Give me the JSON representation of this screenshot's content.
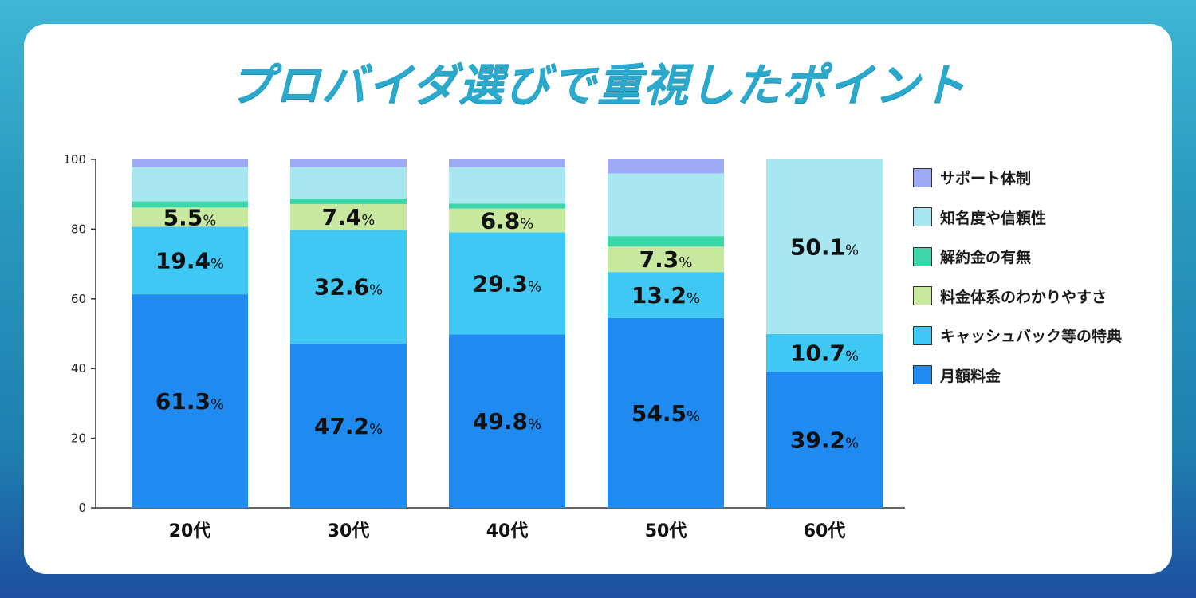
{
  "title": "プロバイダ選びで重視したポイント",
  "colors": {
    "monthly_fee": "#1f8af0",
    "cashback": "#40c8f5",
    "pricing_clarity": "#c8e8a0",
    "cancellation_fee": "#3dd6a8",
    "reputation": "#a8e6f0",
    "support": "#9eaaf5"
  },
  "chart_data": {
    "type": "bar",
    "stacked": true,
    "categories": [
      "20代",
      "30代",
      "40代",
      "50代",
      "60代"
    ],
    "ylim": [
      0,
      100
    ],
    "yticks": [
      0,
      20,
      40,
      60,
      80,
      100
    ],
    "value_suffix": "%",
    "series": [
      {
        "name": "月額料金",
        "key": "monthly_fee",
        "values": [
          61.3,
          47.2,
          49.8,
          54.5,
          39.2
        ],
        "labels": [
          "61.3",
          "47.2",
          "49.8",
          "54.5",
          "39.2"
        ]
      },
      {
        "name": "キャッシュバック等の特典",
        "key": "cashback",
        "values": [
          19.4,
          32.6,
          29.3,
          13.2,
          10.7
        ],
        "labels": [
          "19.4",
          "32.6",
          "29.3",
          "13.2",
          "10.7"
        ]
      },
      {
        "name": "料金体系のわかりやすさ",
        "key": "pricing_clarity",
        "values": [
          5.5,
          7.4,
          6.8,
          7.3,
          0
        ],
        "labels": [
          "5.5",
          "7.4",
          "6.8",
          "7.3",
          ""
        ]
      },
      {
        "name": "解約金の有無",
        "key": "cancellation_fee",
        "values": [
          1.8,
          1.6,
          1.4,
          3.0,
          0
        ],
        "labels": [
          "",
          "",
          "",
          "",
          ""
        ]
      },
      {
        "name": "知名度や信頼性",
        "key": "reputation",
        "values": [
          9.8,
          9.0,
          10.5,
          18.0,
          50.1
        ],
        "labels": [
          "",
          "",
          "",
          "",
          "50.1"
        ]
      },
      {
        "name": "サポート体制",
        "key": "support",
        "values": [
          2.2,
          2.2,
          2.2,
          4.0,
          0
        ],
        "labels": [
          "",
          "",
          "",
          "",
          ""
        ]
      }
    ],
    "legend_order": [
      "サポート体制",
      "知名度や信頼性",
      "解約金の有無",
      "料金体系のわかりやすさ",
      "キャッシュバック等の特典",
      "月額料金"
    ],
    "legend_position": "right"
  }
}
